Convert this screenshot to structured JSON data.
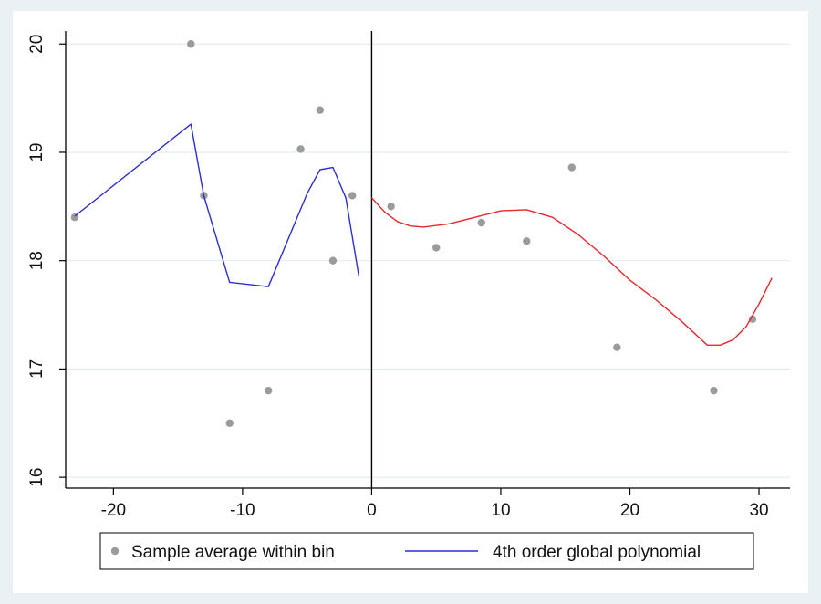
{
  "chart_data": {
    "type": "scatter",
    "x_ticks": [
      -20,
      -10,
      0,
      10,
      20,
      30
    ],
    "y_ticks": [
      16,
      17,
      18,
      19,
      20
    ],
    "xlim": [
      -23.7,
      32.4
    ],
    "ylim": [
      15.9,
      20.12
    ],
    "grid": true,
    "cutoff_x": 0,
    "legend_placement": "bottom",
    "series": [
      {
        "name": "Sample average within bin",
        "kind": "scatter",
        "color": "#9b9b9b",
        "points": [
          [
            -23,
            18.4
          ],
          [
            -14,
            20.0
          ],
          [
            -13,
            18.6
          ],
          [
            -11,
            16.5
          ],
          [
            -8,
            16.8
          ],
          [
            -5.5,
            19.03
          ],
          [
            -4,
            19.39
          ],
          [
            -3,
            18.0
          ],
          [
            -1.5,
            18.6
          ],
          [
            1.5,
            18.5
          ],
          [
            5,
            18.12
          ],
          [
            8.5,
            18.35
          ],
          [
            12,
            18.18
          ],
          [
            15.5,
            18.86
          ],
          [
            19,
            17.2
          ],
          [
            26.5,
            16.8
          ],
          [
            29.5,
            17.46
          ]
        ]
      },
      {
        "name": "4th order global polynomial",
        "kind": "line",
        "color": "#2b2fcf",
        "points": [
          [
            -23,
            18.41
          ],
          [
            -14,
            19.26
          ],
          [
            -13,
            18.6
          ],
          [
            -11,
            17.8
          ],
          [
            -8,
            17.76
          ],
          [
            -5,
            18.62
          ],
          [
            -4,
            18.84
          ],
          [
            -3,
            18.86
          ],
          [
            -2,
            18.58
          ],
          [
            -1,
            17.86
          ]
        ]
      },
      {
        "kind": "line",
        "color": "#e8262b",
        "points": [
          [
            0,
            18.58
          ],
          [
            1,
            18.45
          ],
          [
            2,
            18.36
          ],
          [
            3,
            18.32
          ],
          [
            4,
            18.31
          ],
          [
            6,
            18.34
          ],
          [
            8,
            18.4
          ],
          [
            10,
            18.46
          ],
          [
            12,
            18.47
          ],
          [
            14,
            18.4
          ],
          [
            16,
            18.24
          ],
          [
            18,
            18.04
          ],
          [
            20,
            17.82
          ],
          [
            22,
            17.64
          ],
          [
            24,
            17.44
          ],
          [
            26,
            17.22
          ],
          [
            27,
            17.22
          ],
          [
            28,
            17.27
          ],
          [
            29,
            17.39
          ],
          [
            30,
            17.6
          ],
          [
            31,
            17.84
          ]
        ]
      }
    ]
  }
}
